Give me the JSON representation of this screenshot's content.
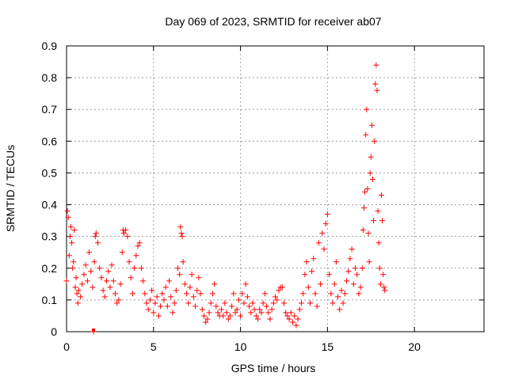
{
  "chart_data": {
    "type": "scatter",
    "title": "Day 069 of 2023, SRMTID for receiver ab07",
    "xlabel": "GPS time / hours",
    "ylabel": "SRMTID / TECUs",
    "xlim": [
      0,
      24
    ],
    "ylim": [
      0,
      0.9
    ],
    "xticks": [
      0,
      5,
      10,
      15,
      20
    ],
    "yticks": [
      0,
      0.1,
      0.2,
      0.3,
      0.4,
      0.5,
      0.6,
      0.7,
      0.8,
      0.9
    ],
    "xtick_labels": [
      "0",
      "5",
      "10",
      "15",
      "20"
    ],
    "ytick_labels": [
      "0",
      "0.1",
      "0.2",
      "0.3",
      "0.4",
      "0.5",
      "0.6",
      "0.7",
      "0.8",
      "0.9"
    ],
    "grid": true,
    "marker": "+",
    "color": "#ff0000",
    "series": [
      {
        "name": "SRMTID",
        "points": [
          [
            0.0,
            0.16
          ],
          [
            0.05,
            0.38
          ],
          [
            0.1,
            0.36
          ],
          [
            0.15,
            0.24
          ],
          [
            0.2,
            0.3
          ],
          [
            0.25,
            0.33
          ],
          [
            0.3,
            0.28
          ],
          [
            0.35,
            0.2
          ],
          [
            0.4,
            0.22
          ],
          [
            0.45,
            0.32
          ],
          [
            0.5,
            0.14
          ],
          [
            0.55,
            0.17
          ],
          [
            0.6,
            0.12
          ],
          [
            0.65,
            0.09
          ],
          [
            0.7,
            0.13
          ],
          [
            0.8,
            0.11
          ],
          [
            0.9,
            0.15
          ],
          [
            1.0,
            0.18
          ],
          [
            1.1,
            0.21
          ],
          [
            1.2,
            0.16
          ],
          [
            1.3,
            0.25
          ],
          [
            1.4,
            0.19
          ],
          [
            1.5,
            0.14
          ],
          [
            1.55,
            0.0
          ],
          [
            1.6,
            0.22
          ],
          [
            1.65,
            0.3
          ],
          [
            1.7,
            0.31
          ],
          [
            1.8,
            0.28
          ],
          [
            1.9,
            0.2
          ],
          [
            2.0,
            0.17
          ],
          [
            2.1,
            0.13
          ],
          [
            2.2,
            0.11
          ],
          [
            2.3,
            0.16
          ],
          [
            2.4,
            0.19
          ],
          [
            2.5,
            0.14
          ],
          [
            2.6,
            0.21
          ],
          [
            2.7,
            0.16
          ],
          [
            2.8,
            0.12
          ],
          [
            2.9,
            0.09
          ],
          [
            3.0,
            0.1
          ],
          [
            3.1,
            0.15
          ],
          [
            3.2,
            0.25
          ],
          [
            3.25,
            0.32
          ],
          [
            3.3,
            0.31
          ],
          [
            3.4,
            0.32
          ],
          [
            3.5,
            0.3
          ],
          [
            3.6,
            0.22
          ],
          [
            3.7,
            0.17
          ],
          [
            3.8,
            0.12
          ],
          [
            3.9,
            0.2
          ],
          [
            4.0,
            0.24
          ],
          [
            4.1,
            0.27
          ],
          [
            4.2,
            0.28
          ],
          [
            4.3,
            0.2
          ],
          [
            4.4,
            0.16
          ],
          [
            4.5,
            0.12
          ],
          [
            4.6,
            0.09
          ],
          [
            4.7,
            0.07
          ],
          [
            4.8,
            0.1
          ],
          [
            4.9,
            0.13
          ],
          [
            5.0,
            0.06
          ],
          [
            5.1,
            0.09
          ],
          [
            5.2,
            0.11
          ],
          [
            5.3,
            0.05
          ],
          [
            5.4,
            0.08
          ],
          [
            5.5,
            0.12
          ],
          [
            5.6,
            0.1
          ],
          [
            5.7,
            0.14
          ],
          [
            5.8,
            0.08
          ],
          [
            5.9,
            0.16
          ],
          [
            6.0,
            0.11
          ],
          [
            6.1,
            0.06
          ],
          [
            6.2,
            0.09
          ],
          [
            6.3,
            0.13
          ],
          [
            6.4,
            0.2
          ],
          [
            6.5,
            0.18
          ],
          [
            6.55,
            0.33
          ],
          [
            6.6,
            0.31
          ],
          [
            6.65,
            0.3
          ],
          [
            6.7,
            0.22
          ],
          [
            6.8,
            0.15
          ],
          [
            6.9,
            0.12
          ],
          [
            7.0,
            0.09
          ],
          [
            7.1,
            0.14
          ],
          [
            7.2,
            0.18
          ],
          [
            7.3,
            0.11
          ],
          [
            7.4,
            0.08
          ],
          [
            7.5,
            0.13
          ],
          [
            7.6,
            0.17
          ],
          [
            7.7,
            0.12
          ],
          [
            7.8,
            0.07
          ],
          [
            7.9,
            0.05
          ],
          [
            8.0,
            0.03
          ],
          [
            8.1,
            0.04
          ],
          [
            8.2,
            0.06
          ],
          [
            8.3,
            0.09
          ],
          [
            8.4,
            0.12
          ],
          [
            8.5,
            0.15
          ],
          [
            8.6,
            0.08
          ],
          [
            8.7,
            0.06
          ],
          [
            8.8,
            0.05
          ],
          [
            8.9,
            0.07
          ],
          [
            9.0,
            0.05
          ],
          [
            9.1,
            0.09
          ],
          [
            9.2,
            0.06
          ],
          [
            9.3,
            0.04
          ],
          [
            9.4,
            0.05
          ],
          [
            9.5,
            0.08
          ],
          [
            9.6,
            0.12
          ],
          [
            9.7,
            0.06
          ],
          [
            9.8,
            0.07
          ],
          [
            9.9,
            0.1
          ],
          [
            10.0,
            0.05
          ],
          [
            10.1,
            0.12
          ],
          [
            10.2,
            0.09
          ],
          [
            10.3,
            0.15
          ],
          [
            10.4,
            0.11
          ],
          [
            10.5,
            0.08
          ],
          [
            10.6,
            0.06
          ],
          [
            10.7,
            0.09
          ],
          [
            10.8,
            0.07
          ],
          [
            10.9,
            0.05
          ],
          [
            11.0,
            0.04
          ],
          [
            11.1,
            0.07
          ],
          [
            11.2,
            0.06
          ],
          [
            11.3,
            0.09
          ],
          [
            11.4,
            0.12
          ],
          [
            11.5,
            0.08
          ],
          [
            11.6,
            0.06
          ],
          [
            11.7,
            0.04
          ],
          [
            11.8,
            0.07
          ],
          [
            11.9,
            0.09
          ],
          [
            12.0,
            0.11
          ],
          [
            12.1,
            0.1
          ],
          [
            12.2,
            0.13
          ],
          [
            12.3,
            0.14
          ],
          [
            12.4,
            0.14
          ],
          [
            12.5,
            0.09
          ],
          [
            12.6,
            0.06
          ],
          [
            12.7,
            0.05
          ],
          [
            12.8,
            0.04
          ],
          [
            12.9,
            0.06
          ],
          [
            13.0,
            0.03
          ],
          [
            13.1,
            0.05
          ],
          [
            13.2,
            0.02
          ],
          [
            13.3,
            0.04
          ],
          [
            13.4,
            0.07
          ],
          [
            13.5,
            0.09
          ],
          [
            13.6,
            0.12
          ],
          [
            13.7,
            0.18
          ],
          [
            13.8,
            0.22
          ],
          [
            13.9,
            0.14
          ],
          [
            14.0,
            0.09
          ],
          [
            14.1,
            0.19
          ],
          [
            14.2,
            0.23
          ],
          [
            14.3,
            0.12
          ],
          [
            14.4,
            0.08
          ],
          [
            14.5,
            0.28
          ],
          [
            14.6,
            0.15
          ],
          [
            14.7,
            0.31
          ],
          [
            14.8,
            0.26
          ],
          [
            14.9,
            0.34
          ],
          [
            15.0,
            0.37
          ],
          [
            15.1,
            0.18
          ],
          [
            15.2,
            0.12
          ],
          [
            15.3,
            0.09
          ],
          [
            15.4,
            0.15
          ],
          [
            15.5,
            0.22
          ],
          [
            15.6,
            0.11
          ],
          [
            15.7,
            0.07
          ],
          [
            15.8,
            0.13
          ],
          [
            15.9,
            0.09
          ],
          [
            16.0,
            0.12
          ],
          [
            16.1,
            0.16
          ],
          [
            16.2,
            0.19
          ],
          [
            16.3,
            0.23
          ],
          [
            16.4,
            0.26
          ],
          [
            16.5,
            0.15
          ],
          [
            16.6,
            0.2
          ],
          [
            16.7,
            0.18
          ],
          [
            16.8,
            0.12
          ],
          [
            16.9,
            0.14
          ],
          [
            17.0,
            0.2
          ],
          [
            17.05,
            0.32
          ],
          [
            17.1,
            0.39
          ],
          [
            17.15,
            0.44
          ],
          [
            17.2,
            0.62
          ],
          [
            17.25,
            0.7
          ],
          [
            17.3,
            0.45
          ],
          [
            17.35,
            0.31
          ],
          [
            17.4,
            0.22
          ],
          [
            17.45,
            0.5
          ],
          [
            17.5,
            0.55
          ],
          [
            17.55,
            0.65
          ],
          [
            17.6,
            0.48
          ],
          [
            17.65,
            0.35
          ],
          [
            17.7,
            0.6
          ],
          [
            17.75,
            0.78
          ],
          [
            17.8,
            0.84
          ],
          [
            17.85,
            0.76
          ],
          [
            17.9,
            0.38
          ],
          [
            17.95,
            0.28
          ],
          [
            18.0,
            0.2
          ],
          [
            18.05,
            0.15
          ],
          [
            18.1,
            0.43
          ],
          [
            18.15,
            0.35
          ],
          [
            18.2,
            0.18
          ],
          [
            18.25,
            0.14
          ],
          [
            18.3,
            0.13
          ]
        ]
      }
    ],
    "min_bar": {
      "x": 1.55,
      "y": 0.0
    }
  }
}
